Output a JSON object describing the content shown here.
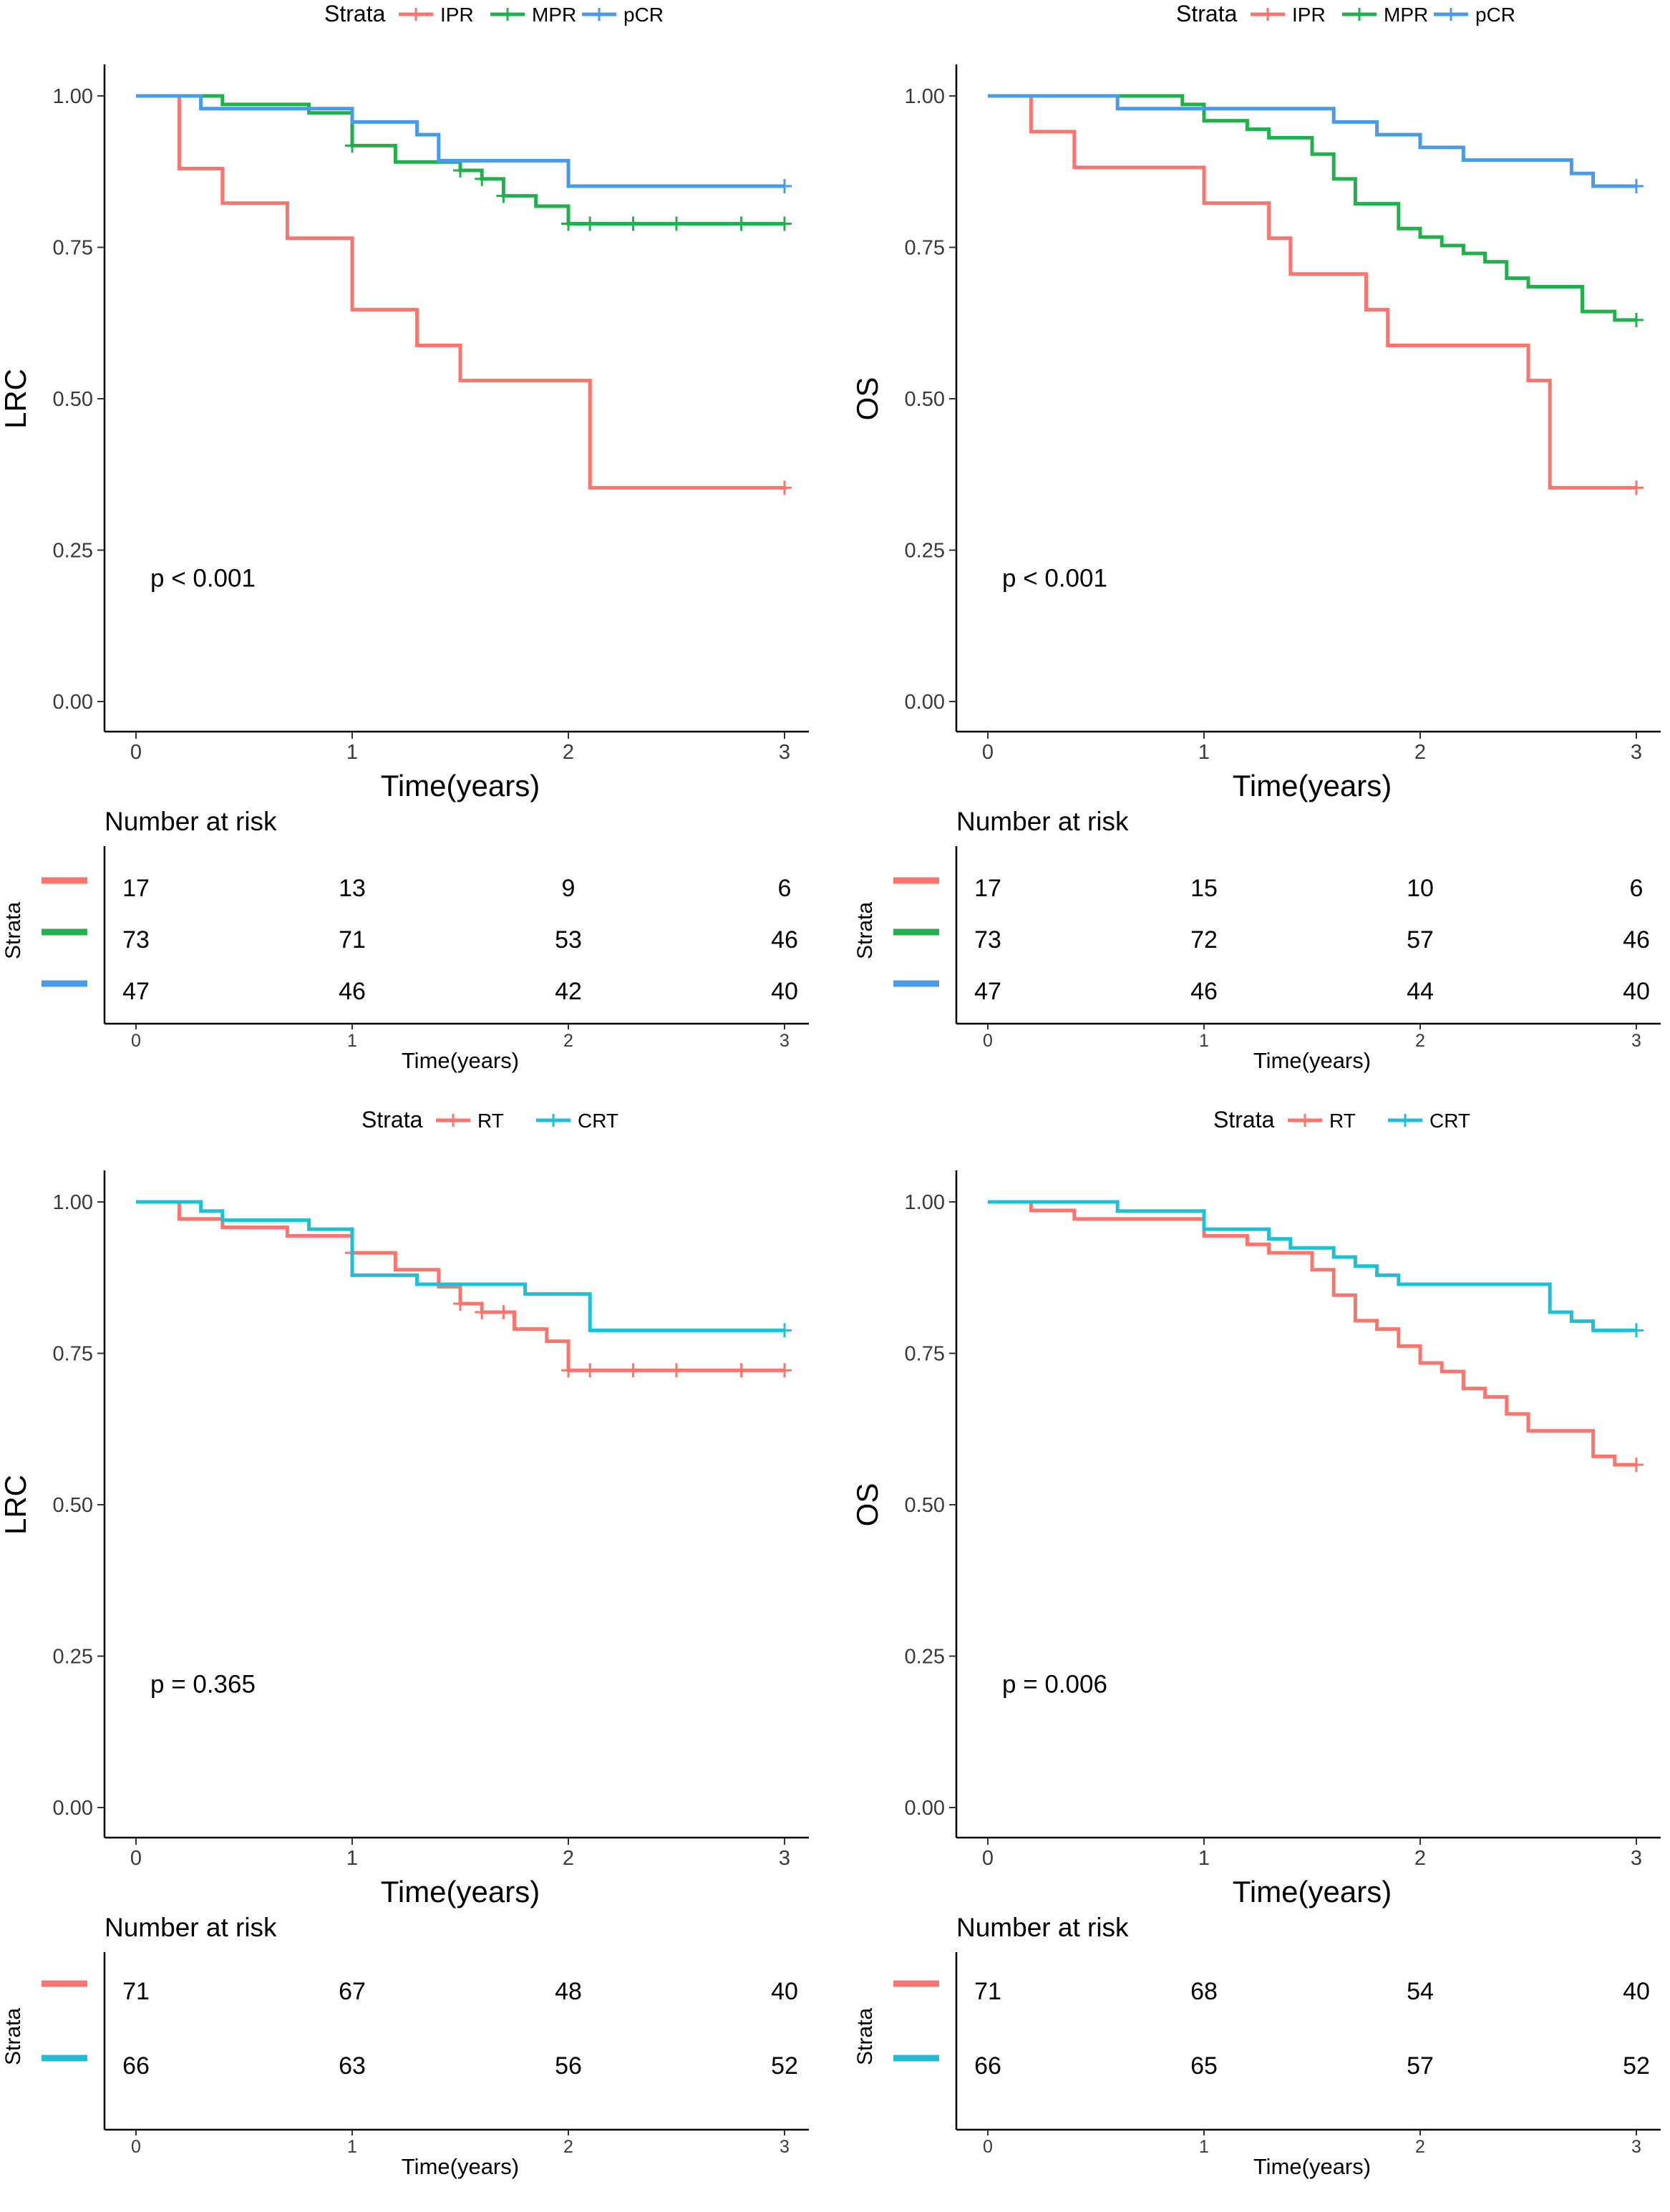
{
  "panels": [
    {
      "chart_data": {
        "type": "line",
        "subtype": "kaplan-meier",
        "legend_title": "Strata",
        "legend_position": "top",
        "xlabel": "Time(years)",
        "ylabel": "LRC",
        "xlim": [
          0,
          3
        ],
        "ylim": [
          0,
          1
        ],
        "x_ticks": [
          "0",
          "1",
          "2",
          "3"
        ],
        "y_ticks": [
          "0.00",
          "0.25",
          "0.50",
          "0.75",
          "1.00"
        ],
        "p_value": "p < 0.001",
        "series": [
          {
            "name": "IPR",
            "color": "#F8766D",
            "steps": [
              [
                0,
                1
              ],
              [
                0.2,
                0.88
              ],
              [
                0.4,
                0.823
              ],
              [
                0.7,
                0.765
              ],
              [
                1.0,
                0.647
              ],
              [
                1.3,
                0.588
              ],
              [
                1.5,
                0.53
              ],
              [
                2.1,
                0.353
              ],
              [
                3,
                0.353
              ]
            ],
            "censor": [
              3.0
            ]
          },
          {
            "name": "MPR",
            "color": "#21B04B",
            "steps": [
              [
                0,
                1
              ],
              [
                0.4,
                0.986
              ],
              [
                0.8,
                0.972
              ],
              [
                1.0,
                0.918
              ],
              [
                1.2,
                0.891
              ],
              [
                1.5,
                0.877
              ],
              [
                1.6,
                0.863
              ],
              [
                1.7,
                0.835
              ],
              [
                1.85,
                0.818
              ],
              [
                2.0,
                0.789
              ],
              [
                3,
                0.789
              ]
            ],
            "censor": [
              1.0,
              1.5,
              1.6,
              1.7,
              2.0,
              2.1,
              2.3,
              2.5,
              2.8,
              3.0
            ]
          },
          {
            "name": "pCR",
            "color": "#4A9BE6",
            "steps": [
              [
                0,
                1
              ],
              [
                0.3,
                0.979
              ],
              [
                1.0,
                0.957
              ],
              [
                1.3,
                0.936
              ],
              [
                1.4,
                0.893
              ],
              [
                2.0,
                0.851
              ],
              [
                3,
                0.851
              ]
            ],
            "censor": [
              3.0
            ]
          }
        ],
        "risk_table": {
          "title": "Number at risk",
          "ytitle": "Strata",
          "xlabel": "Time(years)",
          "rows": [
            {
              "color": "#F8766D",
              "values": [
                "17",
                "13",
                "9",
                "6"
              ]
            },
            {
              "color": "#21B04B",
              "values": [
                "73",
                "71",
                "53",
                "46"
              ]
            },
            {
              "color": "#4A9BE6",
              "values": [
                "47",
                "46",
                "42",
                "40"
              ]
            }
          ]
        }
      }
    },
    {
      "chart_data": {
        "type": "line",
        "subtype": "kaplan-meier",
        "legend_title": "Strata",
        "legend_position": "top",
        "xlabel": "Time(years)",
        "ylabel": "OS",
        "xlim": [
          0,
          3
        ],
        "ylim": [
          0,
          1
        ],
        "x_ticks": [
          "0",
          "1",
          "2",
          "3"
        ],
        "y_ticks": [
          "0.00",
          "0.25",
          "0.50",
          "0.75",
          "1.00"
        ],
        "p_value": "p < 0.001",
        "series": [
          {
            "name": "IPR",
            "color": "#F8766D",
            "steps": [
              [
                0,
                1
              ],
              [
                0.2,
                0.941
              ],
              [
                0.4,
                0.882
              ],
              [
                1.0,
                0.823
              ],
              [
                1.3,
                0.765
              ],
              [
                1.4,
                0.706
              ],
              [
                1.75,
                0.647
              ],
              [
                1.85,
                0.588
              ],
              [
                2.5,
                0.53
              ],
              [
                2.6,
                0.353
              ],
              [
                3,
                0.353
              ]
            ],
            "censor": [
              3.0
            ]
          },
          {
            "name": "MPR",
            "color": "#21B04B",
            "steps": [
              [
                0,
                1
              ],
              [
                0.9,
                0.986
              ],
              [
                1.0,
                0.959
              ],
              [
                1.2,
                0.945
              ],
              [
                1.3,
                0.931
              ],
              [
                1.5,
                0.904
              ],
              [
                1.6,
                0.863
              ],
              [
                1.7,
                0.822
              ],
              [
                1.9,
                0.781
              ],
              [
                2.0,
                0.767
              ],
              [
                2.1,
                0.753
              ],
              [
                2.2,
                0.74
              ],
              [
                2.3,
                0.726
              ],
              [
                2.4,
                0.699
              ],
              [
                2.5,
                0.685
              ],
              [
                2.75,
                0.644
              ],
              [
                2.9,
                0.63
              ],
              [
                3,
                0.63
              ]
            ],
            "censor": [
              3.0
            ]
          },
          {
            "name": "pCR",
            "color": "#4A9BE6",
            "steps": [
              [
                0,
                1
              ],
              [
                0.6,
                0.979
              ],
              [
                1.6,
                0.957
              ],
              [
                1.8,
                0.936
              ],
              [
                2.0,
                0.915
              ],
              [
                2.2,
                0.894
              ],
              [
                2.7,
                0.872
              ],
              [
                2.8,
                0.851
              ],
              [
                3,
                0.851
              ]
            ],
            "censor": [
              3.0
            ]
          }
        ],
        "risk_table": {
          "title": "Number at risk",
          "ytitle": "Strata",
          "xlabel": "Time(years)",
          "rows": [
            {
              "color": "#F8766D",
              "values": [
                "17",
                "15",
                "10",
                "6"
              ]
            },
            {
              "color": "#21B04B",
              "values": [
                "73",
                "72",
                "57",
                "46"
              ]
            },
            {
              "color": "#4A9BE6",
              "values": [
                "47",
                "46",
                "44",
                "40"
              ]
            }
          ]
        }
      }
    },
    {
      "chart_data": {
        "type": "line",
        "subtype": "kaplan-meier",
        "legend_title": "Strata",
        "legend_position": "top",
        "xlabel": "Time(years)",
        "ylabel": "LRC",
        "xlim": [
          0,
          3
        ],
        "ylim": [
          0,
          1
        ],
        "x_ticks": [
          "0",
          "1",
          "2",
          "3"
        ],
        "y_ticks": [
          "0.00",
          "0.25",
          "0.50",
          "0.75",
          "1.00"
        ],
        "p_value": "p = 0.365",
        "series": [
          {
            "name": "RT",
            "color": "#F8766D",
            "steps": [
              [
                0,
                1
              ],
              [
                0.2,
                0.972
              ],
              [
                0.4,
                0.958
              ],
              [
                0.7,
                0.944
              ],
              [
                1.0,
                0.916
              ],
              [
                1.2,
                0.888
              ],
              [
                1.4,
                0.86
              ],
              [
                1.5,
                0.832
              ],
              [
                1.6,
                0.818
              ],
              [
                1.75,
                0.79
              ],
              [
                1.9,
                0.77
              ],
              [
                2.0,
                0.722
              ],
              [
                3,
                0.722
              ]
            ],
            "censor": [
              1.0,
              1.5,
              1.6,
              1.7,
              2.0,
              2.1,
              2.3,
              2.5,
              2.8,
              3.0
            ]
          },
          {
            "name": "CRT",
            "color": "#1FBFD6",
            "steps": [
              [
                0,
                1
              ],
              [
                0.3,
                0.985
              ],
              [
                0.4,
                0.97
              ],
              [
                0.8,
                0.955
              ],
              [
                1.0,
                0.879
              ],
              [
                1.3,
                0.864
              ],
              [
                1.8,
                0.848
              ],
              [
                2.1,
                0.788
              ],
              [
                3,
                0.788
              ]
            ],
            "censor": [
              3.0
            ]
          }
        ],
        "risk_table": {
          "title": "Number at risk",
          "ytitle": "Strata",
          "xlabel": "Time(years)",
          "rows": [
            {
              "color": "#F8766D",
              "values": [
                "71",
                "67",
                "48",
                "40"
              ]
            },
            {
              "color": "#1FBFD6",
              "values": [
                "66",
                "63",
                "56",
                "52"
              ]
            }
          ]
        }
      }
    },
    {
      "chart_data": {
        "type": "line",
        "subtype": "kaplan-meier",
        "legend_title": "Strata",
        "legend_position": "top",
        "xlabel": "Time(years)",
        "ylabel": "OS",
        "xlim": [
          0,
          3
        ],
        "ylim": [
          0,
          1
        ],
        "x_ticks": [
          "0",
          "1",
          "2",
          "3"
        ],
        "y_ticks": [
          "0.00",
          "0.25",
          "0.50",
          "0.75",
          "1.00"
        ],
        "p_value": "p = 0.006",
        "series": [
          {
            "name": "RT",
            "color": "#F8766D",
            "steps": [
              [
                0,
                1
              ],
              [
                0.2,
                0.986
              ],
              [
                0.4,
                0.972
              ],
              [
                1.0,
                0.944
              ],
              [
                1.2,
                0.93
              ],
              [
                1.3,
                0.916
              ],
              [
                1.5,
                0.888
              ],
              [
                1.6,
                0.846
              ],
              [
                1.7,
                0.804
              ],
              [
                1.8,
                0.79
              ],
              [
                1.9,
                0.762
              ],
              [
                2.0,
                0.734
              ],
              [
                2.1,
                0.72
              ],
              [
                2.2,
                0.692
              ],
              [
                2.3,
                0.678
              ],
              [
                2.4,
                0.65
              ],
              [
                2.5,
                0.622
              ],
              [
                2.8,
                0.58
              ],
              [
                2.9,
                0.566
              ],
              [
                3,
                0.566
              ]
            ],
            "censor": [
              3.0
            ]
          },
          {
            "name": "CRT",
            "color": "#1FBFD6",
            "steps": [
              [
                0,
                1
              ],
              [
                0.6,
                0.985
              ],
              [
                1.0,
                0.955
              ],
              [
                1.3,
                0.939
              ],
              [
                1.4,
                0.924
              ],
              [
                1.6,
                0.909
              ],
              [
                1.7,
                0.894
              ],
              [
                1.8,
                0.879
              ],
              [
                1.9,
                0.864
              ],
              [
                2.6,
                0.818
              ],
              [
                2.7,
                0.803
              ],
              [
                2.8,
                0.788
              ],
              [
                3,
                0.788
              ]
            ],
            "censor": [
              3.0
            ]
          }
        ],
        "risk_table": {
          "title": "Number at risk",
          "ytitle": "Strata",
          "xlabel": "Time(years)",
          "rows": [
            {
              "color": "#F8766D",
              "values": [
                "71",
                "68",
                "54",
                "40"
              ]
            },
            {
              "color": "#1FBFD6",
              "values": [
                "66",
                "65",
                "57",
                "52"
              ]
            }
          ]
        }
      }
    }
  ]
}
